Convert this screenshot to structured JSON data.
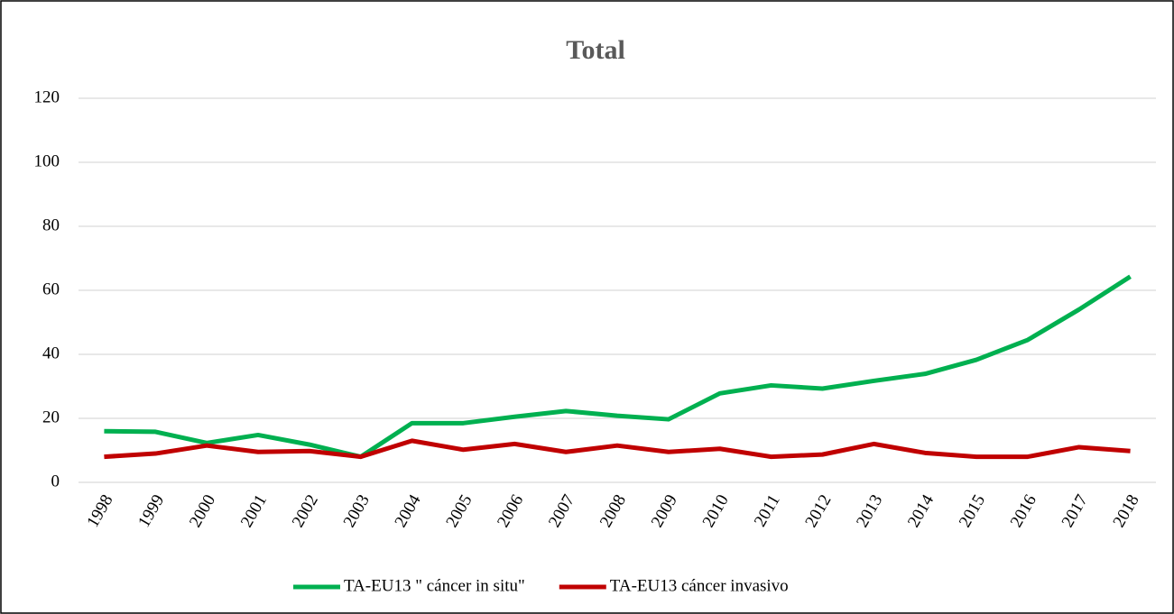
{
  "chart_data": {
    "type": "line",
    "title": "Total",
    "categories": [
      "1998",
      "1999",
      "2000",
      "2001",
      "2002",
      "2003",
      "2004",
      "2005",
      "2006",
      "2007",
      "2008",
      "2009",
      "2010",
      "2011",
      "2012",
      "2013",
      "2014",
      "2015",
      "2016",
      "2017",
      "2018"
    ],
    "series": [
      {
        "name": "TA-EU13 \" cáncer in situ\"",
        "color": "#00b050",
        "values": [
          16,
          15.8,
          12.3,
          14.8,
          11.8,
          8,
          18.5,
          18.5,
          20.5,
          22.3,
          20.8,
          19.7,
          27.8,
          30.3,
          29.3,
          31.7,
          33.9,
          38.3,
          44.5,
          54,
          64.3
        ]
      },
      {
        "name": "TA-EU13 cáncer invasivo",
        "color": "#c00000",
        "values": [
          8,
          9,
          11.5,
          9.5,
          9.8,
          8,
          13,
          10.2,
          12,
          9.5,
          11.5,
          9.5,
          10.5,
          8,
          8.7,
          12,
          9.2,
          8,
          8,
          11,
          9.8
        ]
      }
    ],
    "ylim": [
      0,
      120
    ],
    "yticks": [
      0,
      20,
      40,
      60,
      80,
      100,
      120
    ],
    "grid": true,
    "legend": "bottom"
  }
}
